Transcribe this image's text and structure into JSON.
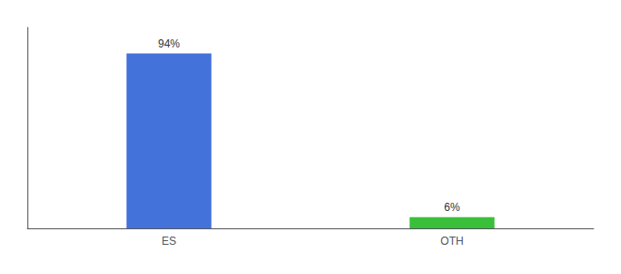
{
  "chart_data": {
    "type": "bar",
    "categories": [
      "ES",
      "OTH"
    ],
    "values": [
      94,
      6
    ],
    "colors": [
      "#4472db",
      "#3abf3a"
    ],
    "value_labels": [
      "94%",
      "6%"
    ],
    "data_labels": true,
    "ylim": [
      0,
      108
    ],
    "tick_labels": "x",
    "grid": false
  }
}
